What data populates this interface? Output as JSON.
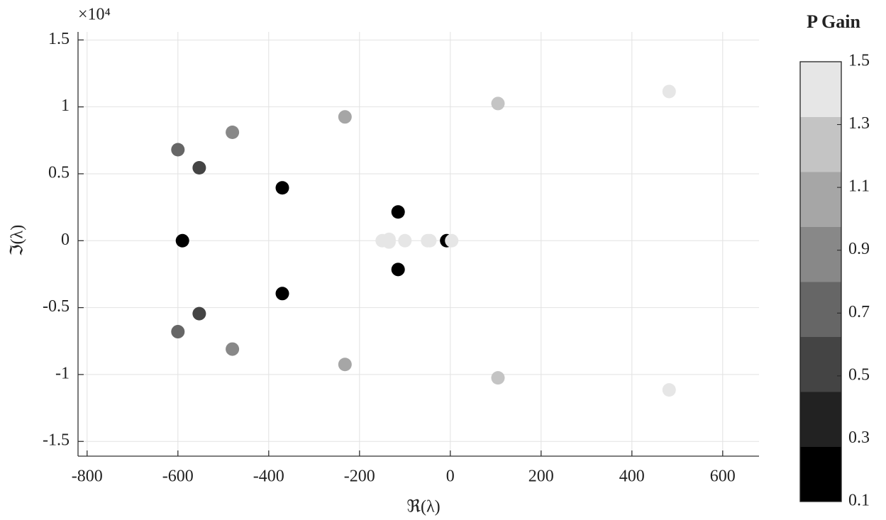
{
  "chart_data": {
    "type": "scatter",
    "x_label": "ℜ(λ)",
    "y_label": "ℑ(λ)",
    "y_multiplier": "×10⁴",
    "x": [
      -590,
      -370,
      -370,
      -115,
      -115,
      -8,
      -553,
      -553,
      -600,
      -600,
      -480,
      -480,
      -232,
      -232,
      105,
      105,
      482,
      482,
      -150,
      -135,
      -135,
      -100,
      -50,
      -45,
      3
    ],
    "y": [
      0,
      0.395,
      -0.395,
      0.215,
      -0.215,
      0,
      0.545,
      -0.545,
      0.68,
      -0.68,
      0.81,
      -0.81,
      0.925,
      -0.925,
      1.025,
      -1.025,
      1.115,
      -1.115,
      0,
      0.01,
      -0.01,
      0,
      0,
      0,
      0
    ],
    "gain": [
      0.15,
      0.15,
      0.15,
      0.15,
      0.15,
      0.15,
      0.5,
      0.5,
      0.7,
      0.7,
      0.9,
      0.9,
      1.1,
      1.1,
      1.3,
      1.3,
      1.45,
      1.45,
      1.45,
      1.45,
      1.45,
      1.45,
      1.45,
      1.45,
      1.45
    ],
    "xlim": [
      -820,
      680
    ],
    "xticks": [
      -800,
      -600,
      -400,
      -200,
      0,
      200,
      400,
      600
    ],
    "ylim": [
      -1.61,
      1.56
    ],
    "yticks": [
      -1.5,
      -1,
      -0.5,
      0,
      0.5,
      1,
      1.5
    ],
    "grid": true,
    "colorbar": {
      "label": "P Gain",
      "clim": [
        0.1,
        1.5
      ],
      "ticks": [
        0.1,
        0.3,
        0.5,
        0.7,
        0.9,
        1.1,
        1.3,
        1.5
      ],
      "colors": [
        "#000000",
        "#222222",
        "#444444",
        "#666666",
        "#888888",
        "#a6a6a6",
        "#c4c4c4",
        "#e6e6e6"
      ]
    }
  }
}
